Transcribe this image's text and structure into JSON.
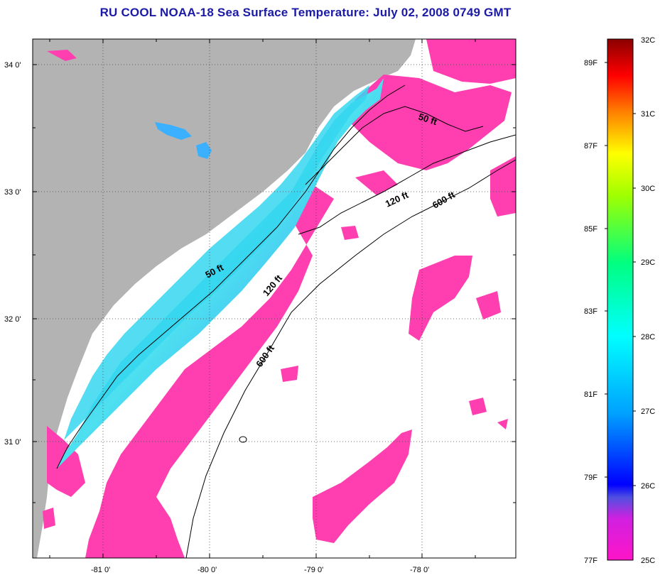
{
  "title": "RU COOL  NOAA-18  Sea Surface Temperature:  July 02, 2008 0749 GMT",
  "latitude_labels": [
    "34 0'",
    "33 0'",
    "32 0'",
    "31 0'"
  ],
  "longitude_labels": [
    "-81 0'",
    "-80 0'",
    "-79 0'",
    "-78 0'"
  ],
  "contour_labels": [
    "50 ft",
    "120 ft",
    "600 ft",
    "50 ft",
    "120 ft",
    "600 ft"
  ],
  "colorbar": {
    "fahrenheit_labels": [
      "89F",
      "87F",
      "85F",
      "83F",
      "81F",
      "79F",
      "77F"
    ],
    "celsius_labels": [
      "32C",
      "31C",
      "30C",
      "29C",
      "28C",
      "27C",
      "26C",
      "25C"
    ]
  },
  "colors": {
    "land": "#b3b3b3",
    "cloud": "#ffffff",
    "cool_water": "#ff3fb0",
    "warm_water": "#39c8ff",
    "title": "#1a1aa6"
  }
}
